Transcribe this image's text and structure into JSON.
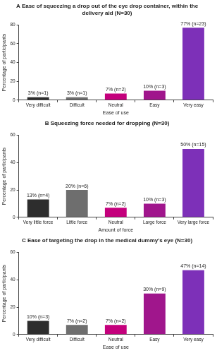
{
  "chart_data": [
    {
      "type": "bar",
      "title": "A Ease of squeezing a drop out of the eye drop container, within the delivery aid (N=30)",
      "x_label": "Ease of use",
      "y_label": "Percentage of participants",
      "categories": [
        "Very difficult",
        "Difficult",
        "Neutral",
        "Easy",
        "Very easy"
      ],
      "values": [
        3,
        3,
        7,
        10,
        77
      ],
      "value_labels": [
        "3% (n=1)",
        "3% (n=1)",
        "7% (n=2)",
        "10% (n=3)",
        "77% (n=23)"
      ],
      "colors": [
        "#2d2d2d",
        "#6e6e6e",
        "#c4007c",
        "#a0168c",
        "#7d30b8"
      ],
      "ylim": [
        0,
        80
      ],
      "yticks": [
        0,
        20,
        40,
        60,
        80
      ],
      "grid": false,
      "data_labels": true
    },
    {
      "type": "bar",
      "title": "B Squeezing force needed for dropping (N=30)",
      "x_label": "Amount of force",
      "y_label": "Percentage of participants",
      "categories": [
        "Very little force",
        "Little force",
        "Neutral",
        "Large force",
        "Very large force"
      ],
      "values": [
        13,
        20,
        7,
        10,
        50
      ],
      "value_labels": [
        "13% (n=4)",
        "20% (n=6)",
        "7% (n=2)",
        "10% (n=3)",
        "50% (n=15)"
      ],
      "colors": [
        "#2d2d2d",
        "#6e6e6e",
        "#c4007c",
        "#a0168c",
        "#7d30b8"
      ],
      "ylim": [
        0,
        60
      ],
      "yticks": [
        0,
        20,
        40,
        60
      ],
      "grid": false,
      "data_labels": true
    },
    {
      "type": "bar",
      "title": "C Ease of targeting the drop in the medical dummy's eye (N=30)",
      "x_label": "Ease of use",
      "y_label": "Percentage of participants",
      "categories": [
        "Very difficult",
        "Difficult",
        "Neutral",
        "Easy",
        "Very easy"
      ],
      "values": [
        10,
        7,
        7,
        30,
        47
      ],
      "value_labels": [
        "10% (n=3)",
        "7% (n=2)",
        "7% (n=2)",
        "30% (n=9)",
        "47% (n=14)"
      ],
      "colors": [
        "#2d2d2d",
        "#6e6e6e",
        "#c4007c",
        "#a0168c",
        "#7d30b8"
      ],
      "ylim": [
        0,
        60
      ],
      "yticks": [
        0,
        20,
        40,
        60
      ],
      "grid": false,
      "data_labels": true
    }
  ]
}
